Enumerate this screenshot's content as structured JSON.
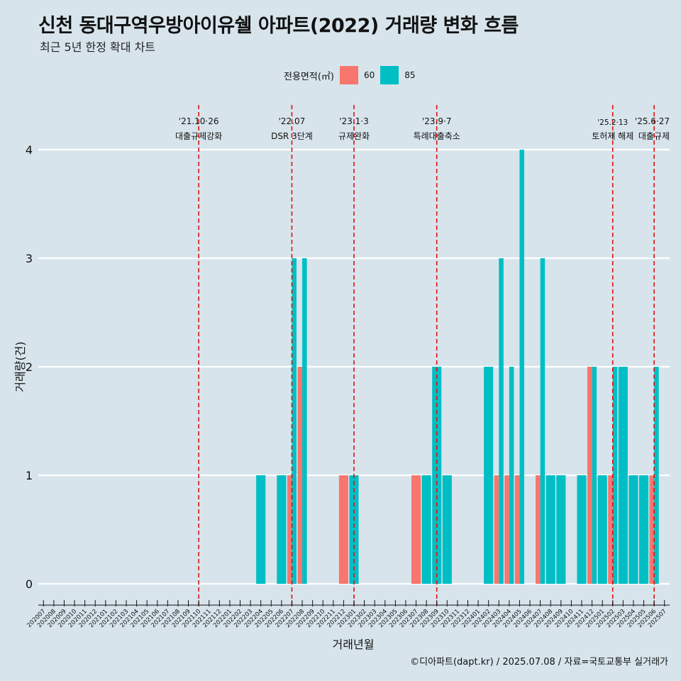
{
  "title": "신천 동대구역우방아이유쉘 아파트(2022) 거래량 변화 흐름",
  "subtitle": "최근 5년 한정 확대 차트",
  "caption": "©디아파트(dapt.kr) / 2025.07.08 / 자료=국토교통부 실거래가",
  "colors": {
    "s60": "#f8766d",
    "s85": "#00bfc4",
    "vline": "#e01010",
    "grid": "#ffffff",
    "background": "#d7e4ec"
  },
  "chart_data": {
    "type": "bar",
    "xlabel": "거래년월",
    "ylabel": "거래량(건)",
    "ylim": [
      0,
      4
    ],
    "yticks": [
      0,
      1,
      2,
      3,
      4
    ],
    "legend": {
      "title": "전용면적(㎡)",
      "placement": "top"
    },
    "categories": [
      "202007",
      "202008",
      "202009",
      "202010",
      "202011",
      "202012",
      "202101",
      "202102",
      "202103",
      "202104",
      "202105",
      "202106",
      "202107",
      "202108",
      "202109",
      "202110",
      "202111",
      "202112",
      "202201",
      "202202",
      "202203",
      "202204",
      "202205",
      "202206",
      "202207",
      "202208",
      "202209",
      "202210",
      "202211",
      "202212",
      "202301",
      "202302",
      "202303",
      "202304",
      "202305",
      "202306",
      "202307",
      "202308",
      "202309",
      "202310",
      "202311",
      "202312",
      "202401",
      "202402",
      "202403",
      "202404",
      "202405",
      "202406",
      "202407",
      "202408",
      "202409",
      "202410",
      "202411",
      "202412",
      "202501",
      "202502",
      "202503",
      "202504",
      "202505",
      "202506",
      "202507"
    ],
    "series": [
      {
        "name": "60",
        "color": "#f8766d",
        "values": [
          0,
          0,
          0,
          0,
          0,
          0,
          0,
          0,
          0,
          0,
          0,
          0,
          0,
          0,
          0,
          0,
          0,
          0,
          0,
          0,
          0,
          0,
          0,
          0,
          1,
          2,
          0,
          0,
          0,
          1,
          0,
          0,
          0,
          0,
          0,
          0,
          1,
          0,
          0,
          0,
          0,
          0,
          0,
          0,
          1,
          1,
          1,
          0,
          1,
          0,
          0,
          0,
          0,
          2,
          0,
          1,
          0,
          0,
          0,
          1,
          0
        ]
      },
      {
        "name": "85",
        "color": "#00bfc4",
        "values": [
          0,
          0,
          0,
          0,
          0,
          0,
          0,
          0,
          0,
          0,
          0,
          0,
          0,
          0,
          0,
          0,
          0,
          0,
          0,
          0,
          0,
          1,
          0,
          1,
          3,
          3,
          0,
          0,
          0,
          0,
          1,
          0,
          0,
          0,
          0,
          0,
          0,
          1,
          2,
          1,
          0,
          0,
          0,
          2,
          3,
          2,
          4,
          0,
          3,
          1,
          1,
          0,
          1,
          2,
          1,
          2,
          2,
          1,
          1,
          2,
          0
        ]
      }
    ],
    "annotations": [
      {
        "at": "202110",
        "date": "'21.10·26",
        "label": "대출규제강화"
      },
      {
        "at": "202207",
        "date": "'22.07",
        "label": "DSR 3단계"
      },
      {
        "at": "202301",
        "date": "'23.1·3",
        "label": "규제완화"
      },
      {
        "at": "202309",
        "date": "'23.9·7",
        "label": "특례대출축소"
      },
      {
        "at": "202502",
        "date": "'25.2·13",
        "label": "토허제 해제"
      },
      {
        "at": "202506",
        "date": "'25.6·27",
        "label": "대출규제"
      }
    ]
  }
}
